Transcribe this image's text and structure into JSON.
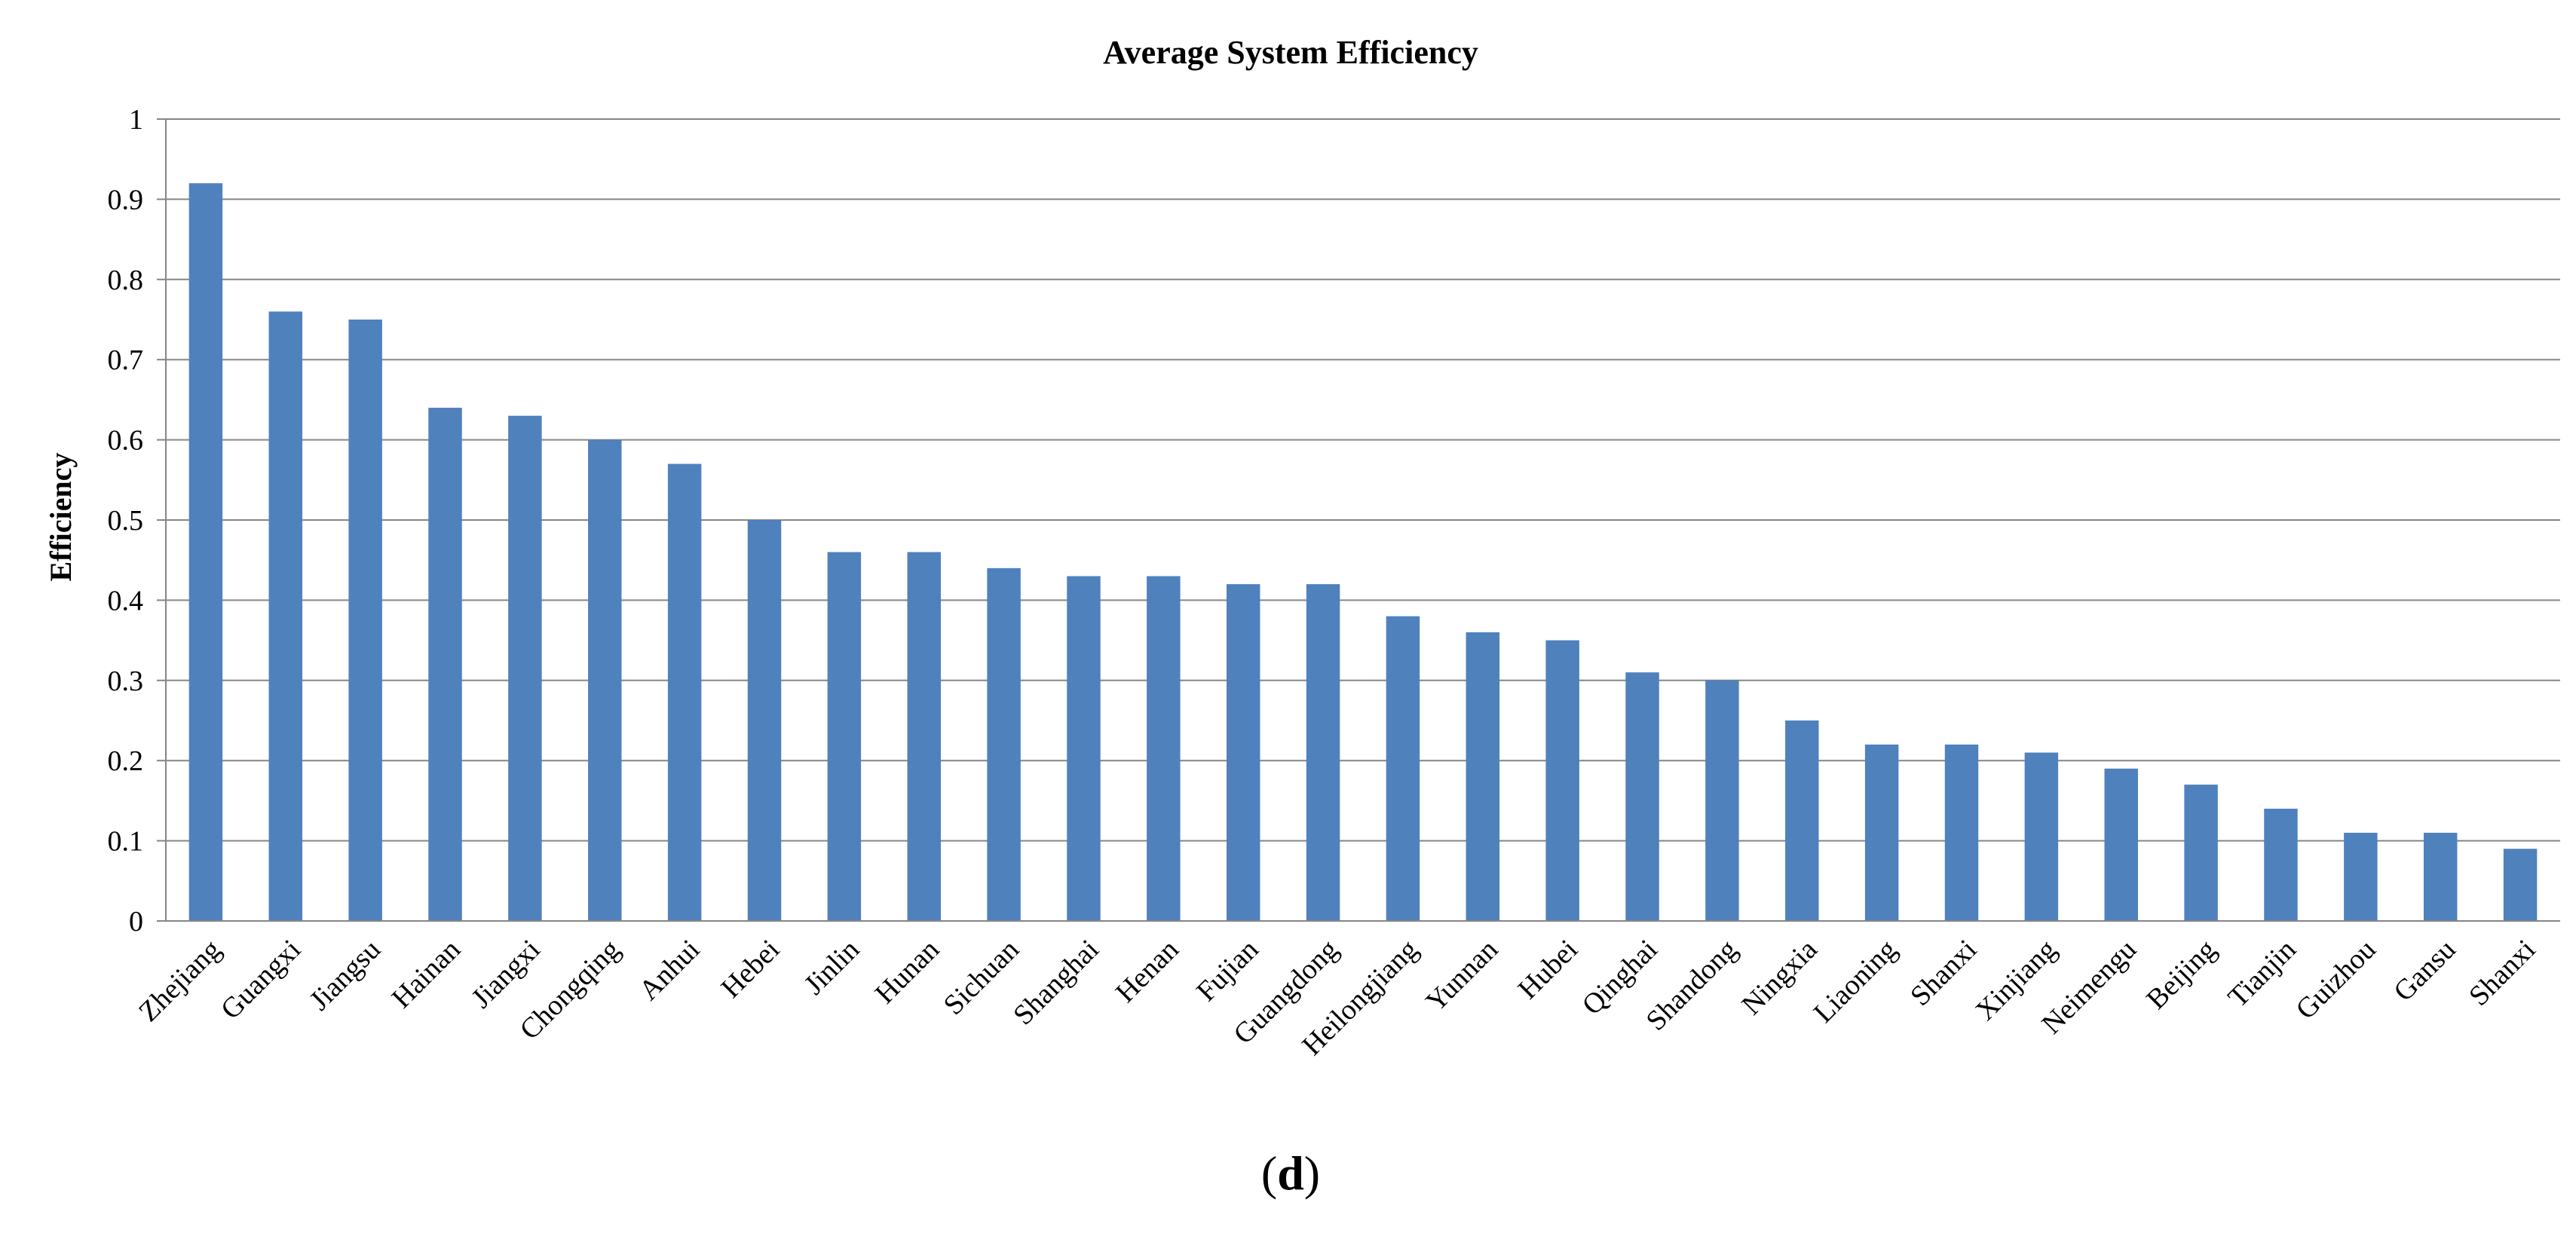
{
  "chart_data": {
    "type": "bar",
    "title": "Average System Efficiency",
    "xlabel": "",
    "ylabel": "Efficiency",
    "ylim": [
      0,
      1
    ],
    "yticks": [
      0,
      0.1,
      0.2,
      0.3,
      0.4,
      0.5,
      0.6,
      0.7,
      0.8,
      0.9,
      1
    ],
    "ytick_labels": [
      "0",
      "0.1",
      "0.2",
      "0.3",
      "0.4",
      "0.5",
      "0.6",
      "0.7",
      "0.8",
      "0.9",
      "1"
    ],
    "grid": true,
    "bar_color": "#4F81BD",
    "categories": [
      "Zhejiang",
      "Guangxi",
      "Jiangsu",
      "Hainan",
      "Jiangxi",
      "Chongqing",
      "Anhui",
      "Hebei",
      "Jinlin",
      "Hunan",
      "Sichuan",
      "Shanghai",
      "Henan",
      "Fujian",
      "Guangdong",
      "Heilongjiang",
      "Yunnan",
      "Hubei",
      "Qinghai",
      "Shandong",
      "Ningxia",
      "Liaoning",
      "Shanxi",
      "Xinjiang",
      "Neimengu",
      "Beijing",
      "Tianjin",
      "Guizhou",
      "Gansu",
      "Shanxi"
    ],
    "values": [
      0.92,
      0.76,
      0.75,
      0.64,
      0.63,
      0.6,
      0.57,
      0.5,
      0.46,
      0.46,
      0.44,
      0.43,
      0.43,
      0.42,
      0.42,
      0.38,
      0.36,
      0.35,
      0.31,
      0.3,
      0.25,
      0.22,
      0.22,
      0.21,
      0.19,
      0.17,
      0.14,
      0.11,
      0.11,
      0.09
    ]
  },
  "panel_label": {
    "open": "(",
    "letter": "d",
    "close": ")"
  }
}
